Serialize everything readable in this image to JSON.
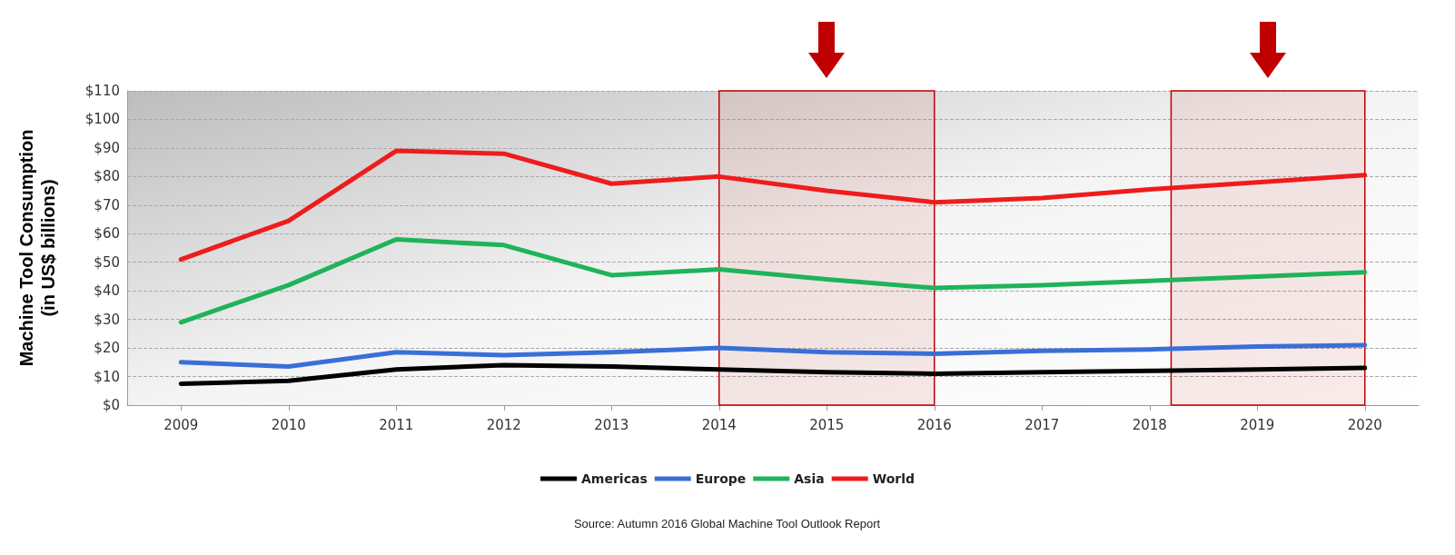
{
  "chart_data": {
    "type": "line",
    "ylabel": "Machine Tool Consumption\n(in US$ billions)",
    "x": [
      2009,
      2010,
      2011,
      2012,
      2013,
      2014,
      2015,
      2016,
      2017,
      2018,
      2019,
      2020
    ],
    "xlim": [
      2008.5,
      2020.5
    ],
    "xticks": [
      2009,
      2010,
      2011,
      2012,
      2013,
      2014,
      2015,
      2016,
      2017,
      2018,
      2019,
      2020
    ],
    "ylim": [
      0,
      110
    ],
    "yticks": [
      {
        "value": 0,
        "label": "$0"
      },
      {
        "value": 10,
        "label": "$10"
      },
      {
        "value": 20,
        "label": "$20"
      },
      {
        "value": 30,
        "label": "$30"
      },
      {
        "value": 40,
        "label": "$40"
      },
      {
        "value": 50,
        "label": "$50"
      },
      {
        "value": 60,
        "label": "$60"
      },
      {
        "value": 70,
        "label": "$70"
      },
      {
        "value": 80,
        "label": "$80"
      },
      {
        "value": 90,
        "label": "$90"
      },
      {
        "value": 100,
        "label": "$100"
      },
      {
        "value": 110,
        "label": "$110"
      }
    ],
    "series": [
      {
        "name": "Americas",
        "color": "#000000",
        "values": [
          7.5,
          8.5,
          12.5,
          14,
          13.5,
          12.5,
          11.5,
          11,
          11.5,
          12,
          12.5,
          13
        ]
      },
      {
        "name": "Europe",
        "color": "#3a6fd8",
        "values": [
          15,
          13.5,
          18.5,
          17.5,
          18.5,
          20,
          18.5,
          18,
          19,
          19.5,
          20.5,
          21
        ]
      },
      {
        "name": "Asia",
        "color": "#1fb35a",
        "values": [
          29,
          42,
          58,
          56,
          45.5,
          47.5,
          44,
          41,
          42,
          43.5,
          45,
          46.5
        ]
      },
      {
        "name": "World",
        "color": "#ee1c1c",
        "values": [
          51,
          64.5,
          89,
          88,
          77.5,
          80,
          75,
          71,
          72.5,
          75.5,
          78,
          80.5
        ]
      }
    ],
    "bands": [
      {
        "axis": "x",
        "from": 2014,
        "to": 2016,
        "color": "#c00000"
      },
      {
        "axis": "x",
        "from": 2018.2,
        "to": 2020,
        "color": "#c00000"
      }
    ],
    "grid": "y",
    "legend": "bottom",
    "line_style": "solid",
    "annotations": [
      "Source: Autumn 2016 Global Machine Tool Outlook Report"
    ]
  }
}
